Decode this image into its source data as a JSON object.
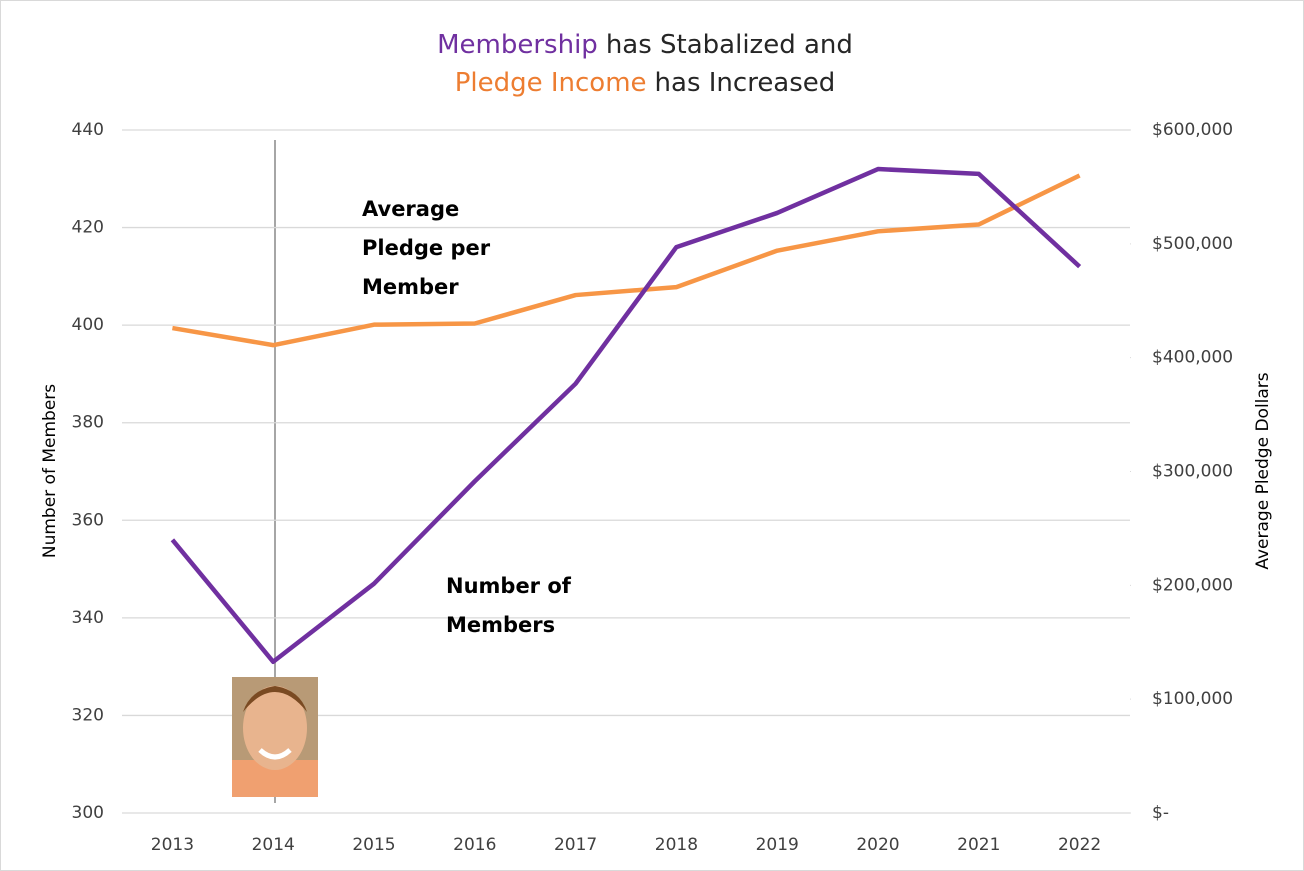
{
  "chart_data": {
    "type": "line",
    "title_lines": [
      [
        {
          "text": "Membership",
          "color": "#7030a0"
        },
        {
          "text": "has Stabalized and"
        }
      ],
      [
        {
          "text": "Pledge Income",
          "color": "#ed7d31"
        },
        {
          "text": "has Increased"
        }
      ]
    ],
    "ylabel": "Number of Members",
    "y2label": "Average Pledge Dollars",
    "categories": [
      "2013",
      "2014",
      "2015",
      "2016",
      "2017",
      "2018",
      "2019",
      "2020",
      "2021",
      "2022"
    ],
    "series": [
      {
        "color": "#7030a0",
        "axis": "y",
        "values": [
          356,
          331,
          347,
          368,
          388,
          416,
          423,
          432,
          431,
          412
        ]
      },
      {
        "color": "#f79646",
        "axis": "y2",
        "values": [
          426000,
          411000,
          429000,
          430000,
          455000,
          462000,
          494000,
          511000,
          517000,
          560000
        ]
      }
    ],
    "annotations": [
      {
        "lines": [
          "Average",
          "Pledge per",
          "Member"
        ]
      },
      {
        "lines": [
          "Number of",
          "Members"
        ]
      }
    ],
    "ylim": [
      300,
      440
    ],
    "yticks": [
      300,
      320,
      340,
      360,
      380,
      400,
      420,
      440
    ],
    "y2lim": [
      0,
      600000
    ],
    "y2ticks": [
      {
        "value": 0,
        "label": "$-"
      },
      {
        "value": 100000,
        "label": "$100,000"
      },
      {
        "value": 200000,
        "label": "$200,000"
      },
      {
        "value": 300000,
        "label": "$300,000"
      },
      {
        "value": 400000,
        "label": "$400,000"
      },
      {
        "value": 500000,
        "label": "$500,000"
      },
      {
        "value": 600000,
        "label": "$600,000"
      }
    ],
    "grid": true
  }
}
